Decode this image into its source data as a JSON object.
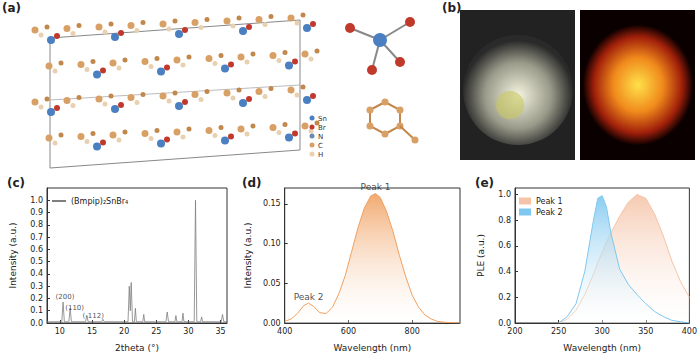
{
  "panels": {
    "a": {
      "label": "(a)",
      "legend": [
        "Sn",
        "Br",
        "N",
        "C",
        "H"
      ]
    },
    "b": {
      "label": "(b)"
    }
  },
  "chart_data": [
    {
      "type": "line",
      "title": "(c)",
      "x_label": "2theta (°)",
      "y_label": "Intensity (a.u.)",
      "x": [
        8,
        10.3,
        10.5,
        10.7,
        11.4,
        11.6,
        11.8,
        14.0,
        14.2,
        14.4,
        16.5,
        16.7,
        16.9,
        20.6,
        20.8,
        20.95,
        21.1,
        21.3,
        21.6,
        21.75,
        21.9,
        22.9,
        23.05,
        23.2,
        26.5,
        26.7,
        26.9,
        27.9,
        28.05,
        28.2,
        29.0,
        29.15,
        29.3,
        30.9,
        31.1,
        31.3,
        31.9,
        32.05,
        32.2,
        35.1,
        35.3,
        35.5,
        36
      ],
      "series": [
        {
          "name": "(Bmpip)₂SnBr₄",
          "color": "#7f7f7f",
          "values": [
            0.01,
            0.01,
            0.17,
            0.01,
            0.01,
            0.12,
            0.01,
            0.01,
            0.06,
            0.01,
            0.01,
            0.03,
            0.01,
            0.01,
            0.3,
            0.1,
            0.33,
            0.01,
            0.01,
            0.12,
            0.01,
            0.01,
            0.07,
            0.01,
            0.01,
            0.09,
            0.01,
            0.01,
            0.06,
            0.01,
            0.01,
            0.08,
            0.01,
            0.01,
            1.0,
            0.01,
            0.01,
            0.05,
            0.01,
            0.01,
            0.07,
            0.01,
            0.01
          ]
        }
      ],
      "annotations": [
        {
          "text": "(200)",
          "x": 10.8,
          "y": 0.21
        },
        {
          "text": "(110)",
          "x": 12.3,
          "y": 0.12
        },
        {
          "text": "(-112)",
          "x": 15.2,
          "y": 0.06
        }
      ],
      "xlim": [
        8,
        36
      ],
      "xticks": [
        10,
        15,
        20,
        25,
        30,
        35
      ],
      "ylim": [
        0,
        1.1
      ],
      "yticks": [
        {
          "value": 0,
          "label": "0.0"
        },
        0.1,
        0.2,
        0.3,
        0.4,
        0.5,
        0.6,
        0.7,
        0.8,
        0.9,
        {
          "value": 1,
          "label": "1.0"
        }
      ],
      "legend": "upper left",
      "grid": false
    },
    {
      "type": "area",
      "title": "(d)",
      "x_label": "Wavelength (nm)",
      "y_label": "Intensity (a.u.)",
      "x": [
        400,
        420,
        440,
        460,
        475,
        490,
        510,
        530,
        550,
        570,
        590,
        610,
        630,
        650,
        670,
        685,
        700,
        720,
        740,
        760,
        780,
        800,
        820,
        840,
        860,
        880,
        900,
        950
      ],
      "series": [
        {
          "name": "Peak 1",
          "color": "#f0a060",
          "values": [
            0.002,
            0.005,
            0.012,
            0.022,
            0.025,
            0.021,
            0.013,
            0.012,
            0.02,
            0.037,
            0.06,
            0.09,
            0.12,
            0.145,
            0.16,
            0.163,
            0.158,
            0.14,
            0.115,
            0.085,
            0.058,
            0.035,
            0.02,
            0.01,
            0.005,
            0.002,
            0.001,
            0
          ]
        }
      ],
      "annotations": [
        {
          "text": "Peak 1",
          "x": 685,
          "y": 0.163
        },
        {
          "text": "Peak 2",
          "x": 475,
          "y": 0.025
        }
      ],
      "xlim": [
        400,
        950
      ],
      "xticks": [
        400,
        600,
        800
      ],
      "ylim": [
        0,
        0.17
      ],
      "yticks": [
        {
          "value": 0,
          "label": "0.00"
        },
        0.05,
        {
          "value": 0.1,
          "label": "0.10"
        },
        0.15
      ],
      "grid": false
    },
    {
      "type": "area",
      "title": "(e)",
      "x_label": "Wavelength (nm)",
      "y_label": "PLE (a.u.)",
      "x": [
        250,
        260,
        270,
        280,
        290,
        295,
        300,
        305,
        310,
        320,
        330,
        340,
        350,
        360,
        370,
        380,
        390,
        400
      ],
      "series": [
        {
          "name": "Peak 1",
          "color": "#f5c4a8",
          "values": [
            0,
            0.03,
            0.1,
            0.22,
            0.38,
            0.47,
            0.55,
            0.63,
            0.7,
            0.83,
            0.94,
            1.0,
            0.97,
            0.85,
            0.68,
            0.48,
            0.32,
            0.2
          ]
        },
        {
          "name": "Peak 2",
          "color": "#7ec8f0",
          "values": [
            0,
            0.05,
            0.15,
            0.4,
            0.8,
            0.97,
            0.99,
            0.9,
            0.7,
            0.42,
            0.3,
            0.22,
            0.15,
            0.09,
            0.05,
            0.02,
            0.01,
            0
          ]
        }
      ],
      "xlim": [
        200,
        400
      ],
      "xticks": [
        200,
        250,
        300,
        350,
        400
      ],
      "ylim": [
        0,
        1.05
      ],
      "yticks": [
        {
          "value": 0,
          "label": "0.0"
        },
        0.2,
        0.4,
        0.6,
        0.8,
        {
          "value": 1,
          "label": "1.0"
        }
      ],
      "legend": "upper left",
      "grid": false
    }
  ]
}
